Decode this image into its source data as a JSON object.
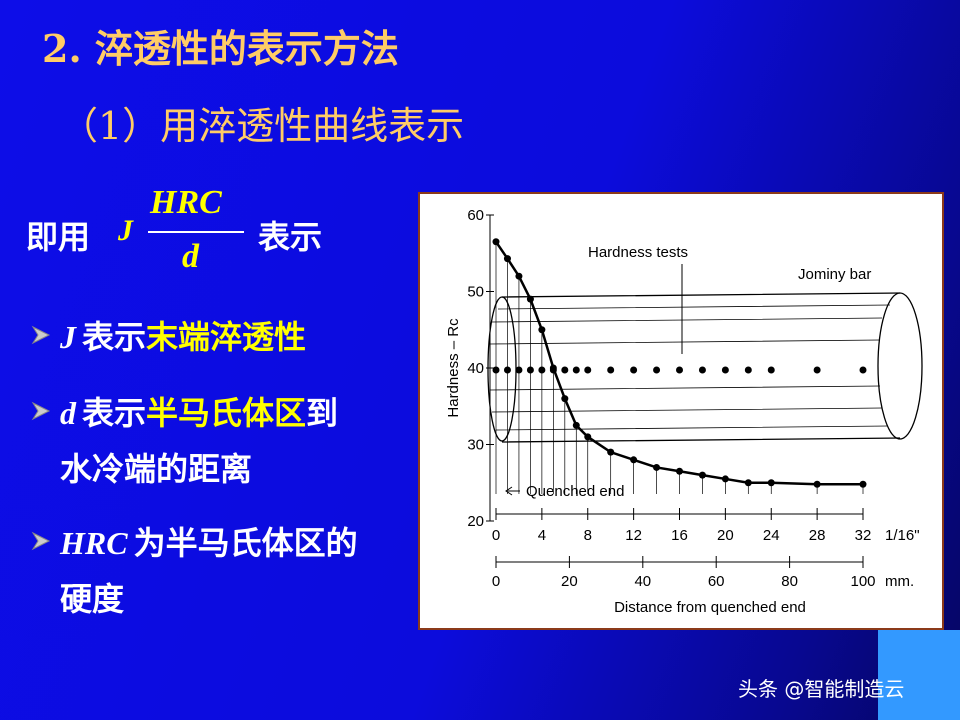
{
  "header": {
    "title": "2. 淬透性的表示方法",
    "subtitle": "（1）用淬透性曲线表示"
  },
  "formula": {
    "prefix": "即用",
    "symbol": "J",
    "numerator": "HRC",
    "denominator": "d",
    "suffix": "表示"
  },
  "bullets": [
    {
      "term": "J",
      "text": "表示",
      "highlight": "末端淬透性"
    },
    {
      "term": "d",
      "text": "表示",
      "highlight": "半马氏体区",
      "rest": "到",
      "cont": "水冷端的距离"
    },
    {
      "term": "HRC",
      "text": "为半马氏体区的",
      "cont": "硬度"
    }
  ],
  "figure": {
    "type": "line",
    "y_label": "Hardness – Rc",
    "x_label": "Distance from quenched end",
    "x_unit": "1/16\"",
    "x2_unit": "mm.",
    "annotations": [
      "Hardness tests",
      "Jominy bar",
      "Quenched end"
    ],
    "xlim": [
      0,
      32
    ],
    "xticks": [
      0,
      4,
      8,
      12,
      16,
      20,
      24,
      28,
      32
    ],
    "x2lim": [
      0,
      100
    ],
    "x2ticks": [
      0,
      20,
      40,
      60,
      80,
      100
    ],
    "ylim": [
      20,
      60
    ],
    "yticks": [
      20,
      30,
      40,
      50,
      60
    ],
    "color": "#000000",
    "x": [
      0,
      1,
      2,
      3,
      4,
      5,
      6,
      7,
      8,
      10,
      12,
      14,
      16,
      18,
      20,
      22,
      24,
      28,
      32
    ],
    "values": [
      56.5,
      54.3,
      52,
      49,
      45,
      40,
      36,
      32.5,
      31,
      29,
      28,
      27,
      26.5,
      26,
      25.5,
      25,
      25,
      24.8,
      24.8
    ]
  },
  "watermark": "头条 @智能制造云"
}
